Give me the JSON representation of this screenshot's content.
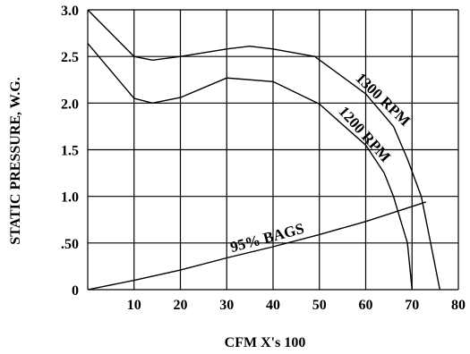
{
  "chart_data": {
    "type": "line",
    "title": "",
    "xlabel": "CFM X's 100",
    "ylabel": "STATIC PRESSURE, W.G.",
    "xlim": [
      0,
      80
    ],
    "ylim": [
      0,
      3.0
    ],
    "grid": true,
    "x_ticks": [
      {
        "value": 10,
        "label": "10"
      },
      {
        "value": 20,
        "label": "20"
      },
      {
        "value": 30,
        "label": "30"
      },
      {
        "value": 40,
        "label": "40"
      },
      {
        "value": 50,
        "label": "50"
      },
      {
        "value": 60,
        "label": "60"
      },
      {
        "value": 70,
        "label": "70"
      },
      {
        "value": 80,
        "label": "80"
      }
    ],
    "y_ticks": [
      {
        "value": 0,
        "label": "0"
      },
      {
        "value": 0.5,
        "label": ".50"
      },
      {
        "value": 1.0,
        "label": "1.0"
      },
      {
        "value": 1.5,
        "label": "1.5"
      },
      {
        "value": 2.0,
        "label": "2.0"
      },
      {
        "value": 2.5,
        "label": "2.5"
      },
      {
        "value": 3.0,
        "label": "3.0"
      }
    ],
    "series": [
      {
        "name": "1300 RPM",
        "points": [
          [
            0,
            3.0
          ],
          [
            10,
            2.5
          ],
          [
            14,
            2.46
          ],
          [
            20,
            2.5
          ],
          [
            30,
            2.58
          ],
          [
            35,
            2.61
          ],
          [
            40,
            2.58
          ],
          [
            49,
            2.5
          ],
          [
            60,
            2.1
          ],
          [
            66,
            1.75
          ],
          [
            69,
            1.4
          ],
          [
            72,
            1.0
          ],
          [
            74,
            0.5
          ],
          [
            76,
            0
          ]
        ]
      },
      {
        "name": "1200 RPM",
        "points": [
          [
            0,
            2.64
          ],
          [
            10,
            2.05
          ],
          [
            14,
            2.0
          ],
          [
            20,
            2.06
          ],
          [
            30,
            2.27
          ],
          [
            40,
            2.23
          ],
          [
            50,
            1.99
          ],
          [
            60,
            1.55
          ],
          [
            64,
            1.25
          ],
          [
            66,
            1.0
          ],
          [
            69,
            0.5
          ],
          [
            70,
            0
          ]
        ]
      },
      {
        "name": "95% BAGS",
        "points": [
          [
            0,
            0
          ],
          [
            10,
            0.1
          ],
          [
            20,
            0.21
          ],
          [
            30,
            0.34
          ],
          [
            40,
            0.46
          ],
          [
            50,
            0.59
          ],
          [
            60,
            0.73
          ],
          [
            73,
            0.94
          ]
        ]
      }
    ]
  }
}
